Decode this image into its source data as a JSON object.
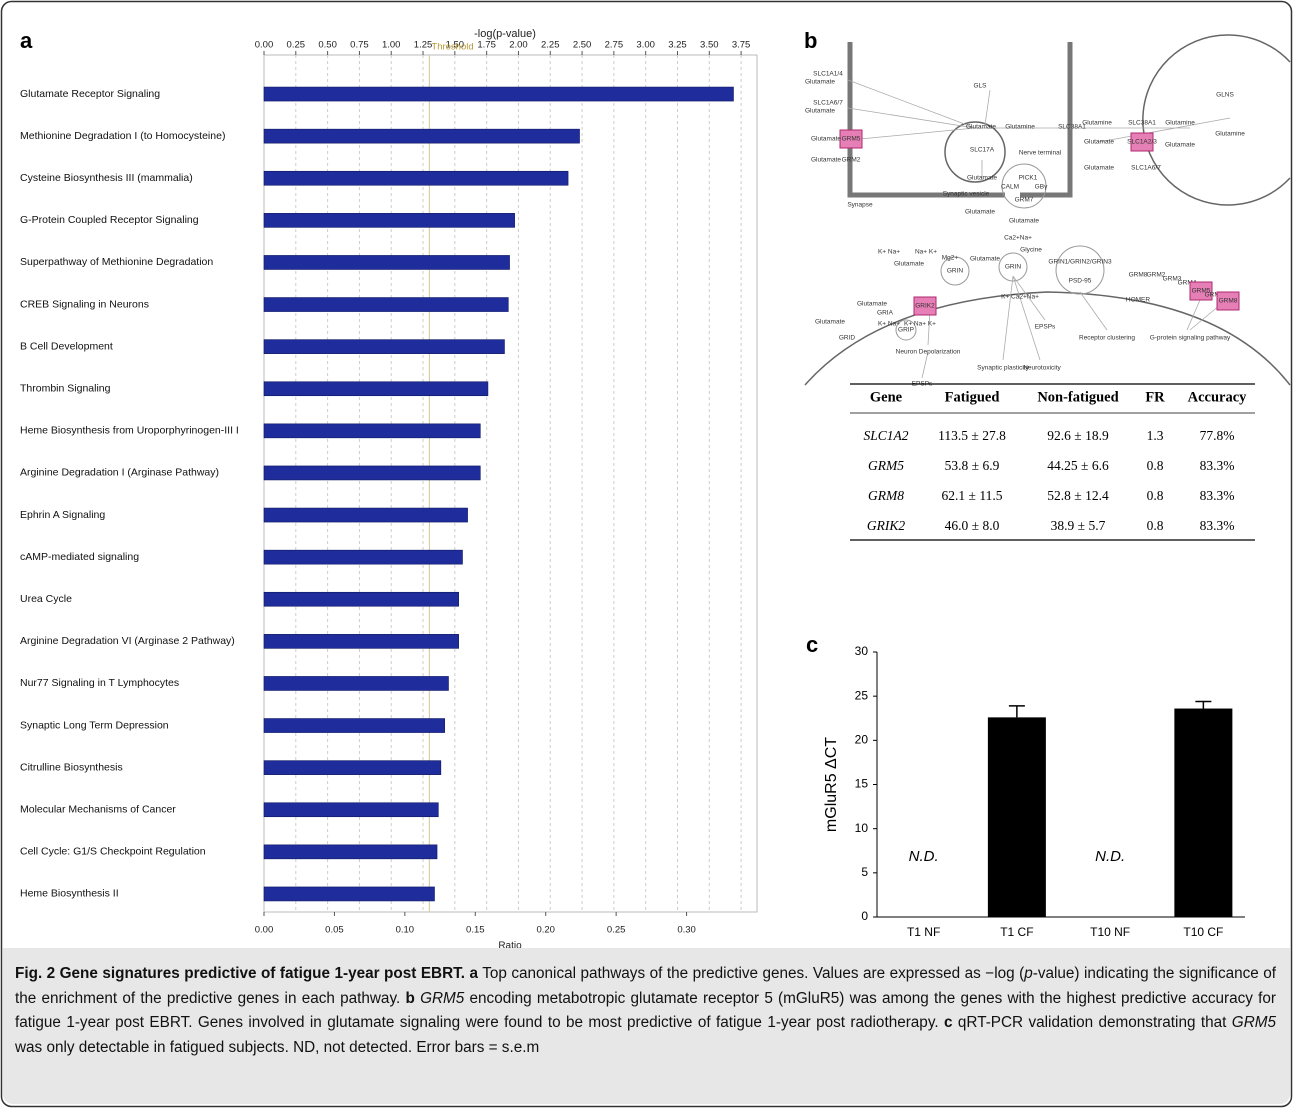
{
  "panel_labels": [
    "a",
    "b",
    "c"
  ],
  "chart_data": [
    {
      "type": "hbar",
      "xlabel": "-log(p-value)",
      "x2label": "Ratio",
      "categories": [
        "Glutamate Receptor Signaling",
        "Methionine Degradation I (to Homocysteine)",
        "Cysteine Biosynthesis III (mammalia)",
        "G-Protein Coupled Receptor Signaling",
        "Superpathway of Methionine Degradation",
        "CREB Signaling in Neurons",
        "B Cell Development",
        "Thrombin Signaling",
        "Heme Biosynthesis from Uroporphyrinogen-III I",
        "Arginine Degradation I (Arginase Pathway)",
        "Ephrin A Signaling",
        "cAMP-mediated signaling",
        "Urea Cycle",
        "Arginine Degradation VI (Arginase 2 Pathway)",
        "Nur77 Signaling in T Lymphocytes",
        "Synaptic Long Term Depression",
        "Citrulline Biosynthesis",
        "Molecular Mechanisms of Cancer",
        "Cell Cycle: G1/S Checkpoint Regulation",
        "Heme Biosynthesis II"
      ],
      "values": [
        3.69,
        2.48,
        2.39,
        1.97,
        1.93,
        1.92,
        1.89,
        1.76,
        1.7,
        1.7,
        1.6,
        1.56,
        1.53,
        1.53,
        1.45,
        1.42,
        1.39,
        1.37,
        1.36,
        1.34
      ],
      "color": "#1f2d9c",
      "threshold": 1.3,
      "threshold_label": "Threshold",
      "xlim": [
        0,
        3.875
      ],
      "xticks": [
        {
          "value": 0,
          "label": "0.00"
        },
        {
          "value": 0.25,
          "label": "0.25"
        },
        {
          "value": 0.5,
          "label": "0.50"
        },
        {
          "value": 0.75,
          "label": "0.75"
        },
        {
          "value": 1,
          "label": "1.00"
        },
        {
          "value": 1.25,
          "label": "1.25"
        },
        {
          "value": 1.5,
          "label": "1.50"
        },
        {
          "value": 1.75,
          "label": "1.75"
        },
        {
          "value": 2,
          "label": "2.00"
        },
        {
          "value": 2.25,
          "label": "2.25"
        },
        {
          "value": 2.5,
          "label": "2.50"
        },
        {
          "value": 2.75,
          "label": "2.75"
        },
        {
          "value": 3,
          "label": "3.00"
        },
        {
          "value": 3.25,
          "label": "3.25"
        },
        {
          "value": 3.5,
          "label": "3.50"
        },
        {
          "value": 3.75,
          "label": "3.75"
        }
      ],
      "x2lim": [
        0,
        0.35
      ],
      "x2ticks": [
        {
          "value": 0,
          "label": "0.00"
        },
        {
          "value": 0.05,
          "label": "0.05"
        },
        {
          "value": 0.1,
          "label": "0.10"
        },
        {
          "value": 0.15,
          "label": "0.15"
        },
        {
          "value": 0.2,
          "label": "0.20"
        },
        {
          "value": 0.25,
          "label": "0.25"
        },
        {
          "value": 0.3,
          "label": "0.30"
        }
      ],
      "grid": true
    },
    {
      "type": "bar",
      "ylabel": "mGluR5 ΔCT",
      "categories": [
        "T1 NF",
        "T1 CF",
        "T10 NF",
        "T10 CF"
      ],
      "values": [
        null,
        22.6,
        null,
        23.6
      ],
      "errors": [
        null,
        1.3,
        null,
        0.8
      ],
      "na_label": "N.D.",
      "color": "#000000",
      "ylim": [
        0,
        30
      ],
      "yticks": [
        0,
        5,
        10,
        15,
        20,
        25,
        30
      ]
    }
  ],
  "diagram": {
    "labels": [
      "SLC1A1/4",
      "Glutamate",
      "SLC1A6/7",
      "Glutamate",
      "GRM5",
      "Glutamate",
      "GRM2",
      "Glutamate",
      "GLS",
      "Glutamate",
      "Glutamine",
      "SLC17A",
      "Glutamate",
      "Synaptic vesicle",
      "Nerve terminal",
      "PICK1",
      "CALM",
      "GBγ",
      "GRM7",
      "Glutamate",
      "Glutamate",
      "Synapse",
      "SLC38A1",
      "Glutamine",
      "SLC38A1",
      "Glutamine",
      "GLNS",
      "Glutamine",
      "Glutamate",
      "SLC1A2/3",
      "Glutamate",
      "Glutamate",
      "SLC1A6/7",
      "K+ Na+",
      "Na+ K+",
      "Glutamate",
      "GRIA",
      "GRIK2",
      "Glutamate",
      "Mg2+",
      "GRIN",
      "Glutamate",
      "Glycine",
      "Ca2+Na+",
      "GRIN",
      "K+ Ca2+Na+",
      "GRIN1/GRIN2/GRIN3",
      "PSD-95",
      "GRIP",
      "Glutamate",
      "GRID",
      "K+ Na+",
      "K+ Na+ K+",
      "Neuron Depolarization",
      "EPSPs",
      "Synaptic plasticity",
      "Neurotoxicity",
      "EPSPs",
      "Receptor clustering",
      "HOMER",
      "GRM8",
      "GRM2",
      "GRM3",
      "GRM4",
      "GRM5",
      "GRM6",
      "GRM8",
      "G-protein signaling pathway"
    ]
  },
  "table": {
    "header": [
      "Gene",
      "Fatigued",
      "Non-fatigued",
      "FR",
      "Accuracy"
    ],
    "rows": [
      [
        "SLC1A2",
        "113.5 ± 27.8",
        "92.6 ± 18.9",
        "1.3",
        "77.8%"
      ],
      [
        "GRM5",
        "53.8 ± 6.9",
        "44.25 ± 6.6",
        "0.8",
        "83.3%"
      ],
      [
        "GRM8",
        "62.1 ± 11.5",
        "52.8 ± 12.4",
        "0.8",
        "83.3%"
      ],
      [
        "GRIK2",
        "46.0 ± 8.0",
        "38.9 ± 5.7",
        "0.8",
        "83.3%"
      ]
    ]
  },
  "caption": [
    "Fig. 2 Gene signatures predictive of fatigue 1-year post EBRT.",
    "a",
    "Top canonical pathways of the predictive genes. Values are expressed as −log (",
    "p",
    "-value) indicating the significance of the enrichment of the predictive genes in each pathway.",
    "b",
    "GRM5",
    "encoding metabotropic glutamate receptor 5 (mGluR5) was among the genes with the highest predictive accuracy for fatigue 1-year post EBRT. Genes involved in glutamate signaling were found to be most predictive of fatigue 1-year post radiotherapy.",
    "c",
    "qRT-PCR validation demonstrating that",
    "GRM5",
    "was only detectable in fatigued subjects. ND, not detected. Error bars = s.e.m"
  ]
}
